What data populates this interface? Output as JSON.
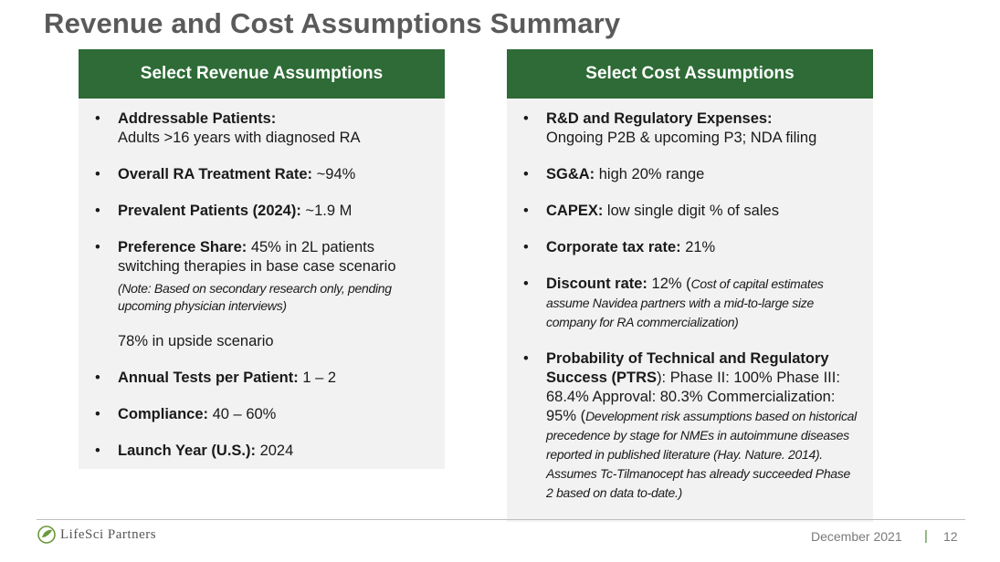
{
  "title": "Revenue and Cost Assumptions Summary",
  "revenue": {
    "header": "Select Revenue Assumptions",
    "items": [
      {
        "label": "Addressable Patients:",
        "text": "Adults >16 years with diagnosed RA"
      },
      {
        "label": "Overall RA Treatment Rate:",
        "text": " ~94%"
      },
      {
        "label": "Prevalent Patients (2024):",
        "text": " ~1.9 M"
      },
      {
        "label": "Preference Share:",
        "text": " 45% in 2L patients switching therapies in base case scenario",
        "note": "(Note: Based on secondary research only, pending upcoming physician interviews)",
        "extra": "78% in upside scenario"
      },
      {
        "label": "Annual Tests per Patient:",
        "text": " 1 – 2"
      },
      {
        "label": "Compliance:",
        "text": " 40 – 60%"
      },
      {
        "label": "Launch Year (U.S.):",
        "text": " 2024"
      }
    ]
  },
  "cost": {
    "header": "Select Cost Assumptions",
    "items": [
      {
        "label": "R&D and Regulatory Expenses:",
        "text": "Ongoing P2B & upcoming P3; NDA filing"
      },
      {
        "label": "SG&A:",
        "text": " high 20% range"
      },
      {
        "label": "CAPEX:",
        "text": " low single digit % of sales"
      },
      {
        "label": "Corporate tax rate:",
        "text": " 21%"
      },
      {
        "label": "Discount rate:",
        "text": " 12% (",
        "note": "Cost of capital estimates assume Navidea partners with a mid-to-large size company for RA commercialization)"
      },
      {
        "label": "Probability of Technical and Regulatory Success (PTRS",
        "text": "): Phase II: 100% Phase III: 68.4% Approval: 80.3% Commercialization: 95% (",
        "note": "Development risk assumptions based on historical precedence by stage for NMEs in autoimmune diseases reported in published literature (Hay. Nature. 2014). Assumes Tc-Tilmanocept has already succeeded Phase 2 based on data to-date.)"
      }
    ]
  },
  "footer": {
    "logo": "LifeSci Partners",
    "date": "December 2021",
    "separator": "|",
    "page": "12"
  },
  "colors": {
    "header_green": "#2e6b36",
    "panel_bg": "#f2f2f2",
    "title_gray": "#5a5a5a"
  }
}
